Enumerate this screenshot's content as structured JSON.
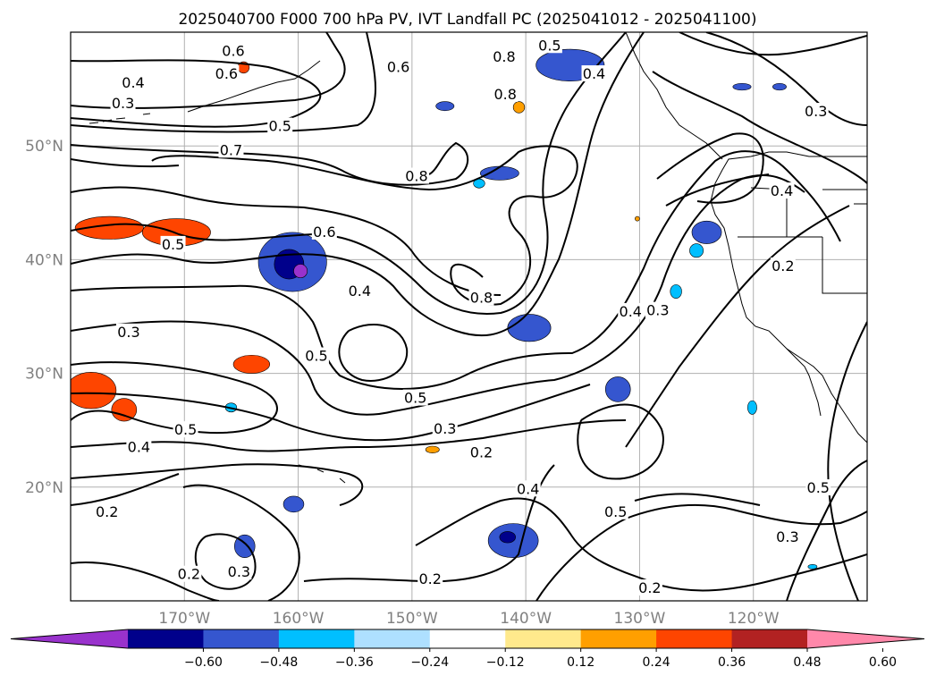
{
  "title": "2025040700 F000 700 hPa PV, IVT Landfall PC (2025041012 - 2025041100)",
  "map": {
    "lon_range": [
      -180,
      -110
    ],
    "lat_range": [
      10,
      60
    ],
    "lon_ticks": [
      {
        "lon": -170,
        "label": "170°W"
      },
      {
        "lon": -160,
        "label": "160°W"
      },
      {
        "lon": -150,
        "label": "150°W"
      },
      {
        "lon": -140,
        "label": "140°W"
      },
      {
        "lon": -130,
        "label": "130°W"
      },
      {
        "lon": -120,
        "label": "120°W"
      }
    ],
    "lat_ticks": [
      {
        "lat": 20,
        "label": "20°N"
      },
      {
        "lat": 30,
        "label": "30°N"
      },
      {
        "lat": 40,
        "label": "40°N"
      },
      {
        "lat": 50,
        "label": "50°N"
      }
    ],
    "grid": true,
    "contour_labels": [
      {
        "text": "0.5",
        "lon": -137.9,
        "lat": 58.8
      },
      {
        "text": "0.4",
        "lon": -134.0,
        "lat": 56.3
      },
      {
        "text": "0.3",
        "lon": -114.5,
        "lat": 53.0
      },
      {
        "text": "0.6",
        "lon": -165.7,
        "lat": 58.3
      },
      {
        "text": "0.6",
        "lon": -166.3,
        "lat": 56.3
      },
      {
        "text": "0.6",
        "lon": -151.2,
        "lat": 56.9
      },
      {
        "text": "0.8",
        "lon": -141.9,
        "lat": 57.8
      },
      {
        "text": "0.8",
        "lon": -141.8,
        "lat": 54.5
      },
      {
        "text": "0.4",
        "lon": -174.5,
        "lat": 55.5
      },
      {
        "text": "0.3",
        "lon": -175.4,
        "lat": 53.7
      },
      {
        "text": "0.5",
        "lon": -161.6,
        "lat": 51.7
      },
      {
        "text": "0.7",
        "lon": -165.9,
        "lat": 49.6
      },
      {
        "text": "0.8",
        "lon": -149.6,
        "lat": 47.3
      },
      {
        "text": "0.4",
        "lon": -117.5,
        "lat": 46.0
      },
      {
        "text": "0.6",
        "lon": -157.7,
        "lat": 42.4
      },
      {
        "text": "0.5",
        "lon": -171.0,
        "lat": 41.3
      },
      {
        "text": "0.2",
        "lon": -117.4,
        "lat": 39.4
      },
      {
        "text": "0.4",
        "lon": -154.6,
        "lat": 37.2
      },
      {
        "text": "0.8",
        "lon": -143.9,
        "lat": 36.6
      },
      {
        "text": "0.4",
        "lon": -130.8,
        "lat": 35.4
      },
      {
        "text": "0.3",
        "lon": -128.4,
        "lat": 35.5
      },
      {
        "text": "0.3",
        "lon": -174.9,
        "lat": 33.6
      },
      {
        "text": "0.5",
        "lon": -158.4,
        "lat": 31.5
      },
      {
        "text": "0.5",
        "lon": -149.7,
        "lat": 27.8
      },
      {
        "text": "0.5",
        "lon": -169.9,
        "lat": 25.0
      },
      {
        "text": "0.3",
        "lon": -147.1,
        "lat": 25.1
      },
      {
        "text": "0.4",
        "lon": -174.0,
        "lat": 23.5
      },
      {
        "text": "0.2",
        "lon": -143.9,
        "lat": 23.0
      },
      {
        "text": "0.4",
        "lon": -139.8,
        "lat": 19.8
      },
      {
        "text": "0.5",
        "lon": -114.3,
        "lat": 19.9
      },
      {
        "text": "0.2",
        "lon": -176.8,
        "lat": 17.8
      },
      {
        "text": "0.5",
        "lon": -132.1,
        "lat": 17.8
      },
      {
        "text": "0.3",
        "lon": -117.0,
        "lat": 15.6
      },
      {
        "text": "0.3",
        "lon": -165.2,
        "lat": 12.5
      },
      {
        "text": "0.2",
        "lon": -169.6,
        "lat": 12.3
      },
      {
        "text": "0.2",
        "lon": -148.4,
        "lat": 11.9
      },
      {
        "text": "0.2",
        "lon": -129.1,
        "lat": 11.1
      }
    ],
    "shaded_areas": [
      {
        "lon": -176.6,
        "lat": 42.8,
        "rx": 3.0,
        "ry": 1.0,
        "color": "#fe4500"
      },
      {
        "lon": -170.7,
        "lat": 42.4,
        "rx": 3.0,
        "ry": 1.2,
        "color": "#fe4500"
      },
      {
        "lon": -178.2,
        "lat": 28.5,
        "rx": 2.2,
        "ry": 1.6,
        "color": "#fe4500"
      },
      {
        "lon": -175.3,
        "lat": 26.8,
        "rx": 1.1,
        "ry": 1.0,
        "color": "#fe4500"
      },
      {
        "lon": -164.1,
        "lat": 30.8,
        "rx": 1.6,
        "ry": 0.8,
        "color": "#fe4500"
      },
      {
        "lon": -148.2,
        "lat": 23.3,
        "rx": 0.6,
        "ry": 0.3,
        "color": "#ff9f00"
      },
      {
        "lon": -164.8,
        "lat": 56.9,
        "rx": 0.5,
        "ry": 0.5,
        "color": "#fe4500"
      },
      {
        "lon": -140.6,
        "lat": 53.4,
        "rx": 0.5,
        "ry": 0.5,
        "color": "#ff9f00"
      },
      {
        "lon": -160.5,
        "lat": 39.8,
        "rx": 3.0,
        "ry": 2.6,
        "color": "#3556cf"
      },
      {
        "lon": -160.8,
        "lat": 39.6,
        "rx": 1.3,
        "ry": 1.3,
        "color": "#00008b"
      },
      {
        "lon": -159.8,
        "lat": 39.0,
        "rx": 0.6,
        "ry": 0.6,
        "color": "#9932cc"
      },
      {
        "lon": -139.7,
        "lat": 34.0,
        "rx": 1.9,
        "ry": 1.2,
        "color": "#3556cf"
      },
      {
        "lon": -131.9,
        "lat": 28.6,
        "rx": 1.1,
        "ry": 1.1,
        "color": "#3556cf"
      },
      {
        "lon": -141.1,
        "lat": 15.3,
        "rx": 2.2,
        "ry": 1.5,
        "color": "#3556cf"
      },
      {
        "lon": -141.6,
        "lat": 15.6,
        "rx": 0.7,
        "ry": 0.5,
        "color": "#00008b"
      },
      {
        "lon": -164.7,
        "lat": 14.8,
        "rx": 0.9,
        "ry": 1.0,
        "color": "#3556cf"
      },
      {
        "lon": -160.4,
        "lat": 18.5,
        "rx": 0.9,
        "ry": 0.7,
        "color": "#3556cf"
      },
      {
        "lon": -136.1,
        "lat": 57.1,
        "rx": 3.0,
        "ry": 1.4,
        "color": "#3556cf"
      },
      {
        "lon": -142.3,
        "lat": 47.6,
        "rx": 1.7,
        "ry": 0.6,
        "color": "#3556cf"
      },
      {
        "lon": -144.1,
        "lat": 46.7,
        "rx": 0.5,
        "ry": 0.4,
        "color": "#00bfff"
      },
      {
        "lon": -147.1,
        "lat": 53.5,
        "rx": 0.8,
        "ry": 0.4,
        "color": "#3556cf"
      },
      {
        "lon": -124.1,
        "lat": 42.4,
        "rx": 1.3,
        "ry": 1.0,
        "color": "#3556cf"
      },
      {
        "lon": -125.0,
        "lat": 40.8,
        "rx": 0.6,
        "ry": 0.6,
        "color": "#00bfff"
      },
      {
        "lon": -121.0,
        "lat": 55.2,
        "rx": 0.8,
        "ry": 0.3,
        "color": "#3556cf"
      },
      {
        "lon": -117.7,
        "lat": 55.2,
        "rx": 0.6,
        "ry": 0.3,
        "color": "#3556cf"
      },
      {
        "lon": -126.8,
        "lat": 37.2,
        "rx": 0.5,
        "ry": 0.6,
        "color": "#00bfff"
      },
      {
        "lon": -120.1,
        "lat": 27.0,
        "rx": 0.4,
        "ry": 0.6,
        "color": "#00bfff"
      },
      {
        "lon": -165.9,
        "lat": 27.0,
        "rx": 0.5,
        "ry": 0.4,
        "color": "#00bfff"
      },
      {
        "lon": -114.8,
        "lat": 13.0,
        "rx": 0.4,
        "ry": 0.2,
        "color": "#00bfff"
      },
      {
        "lon": -130.2,
        "lat": 43.6,
        "rx": 0.2,
        "ry": 0.2,
        "color": "#ff9f00"
      }
    ]
  },
  "colorbar": {
    "labels": [
      "−0.60",
      "−0.48",
      "−0.36",
      "−0.24",
      "−0.12",
      "0.12",
      "0.24",
      "0.36",
      "0.48",
      "0.60"
    ],
    "colors": [
      "#9932cc",
      "#00008b",
      "#3556cf",
      "#00bfff",
      "#aee0ff",
      "#ffffff",
      "#ffe98c",
      "#ff9f00",
      "#fe4500",
      "#b22222",
      "#ff88aa"
    ]
  }
}
